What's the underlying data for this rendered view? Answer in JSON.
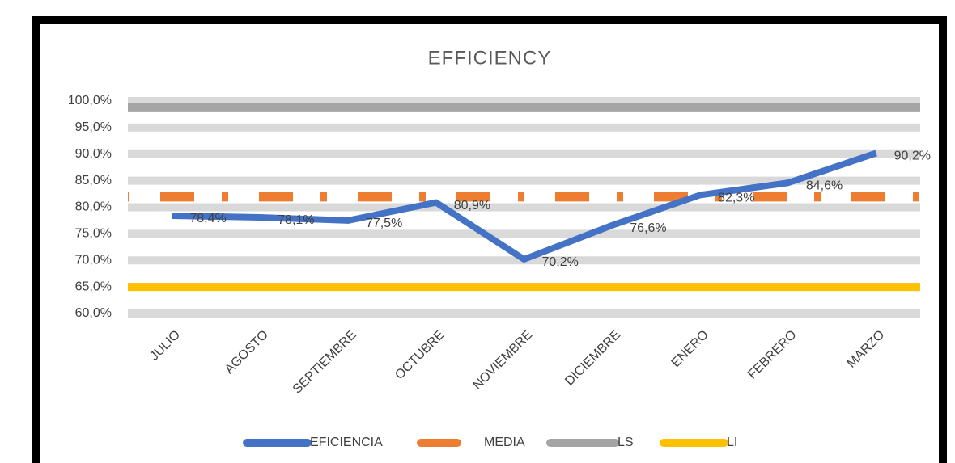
{
  "chart_data": {
    "type": "line",
    "title": "EFFICIENCY",
    "categories": [
      "JULIO",
      "AGOSTO",
      "SEPTIEMBRE",
      "OCTUBRE",
      "NOVIEMBRE",
      "DICIEMBRE",
      "ENERO",
      "FEBRERO",
      "MARZO"
    ],
    "series": [
      {
        "name": "EFICIENCIA",
        "color": "#4472c4",
        "values": [
          78.4,
          78.1,
          77.5,
          80.9,
          70.2,
          76.6,
          82.3,
          84.6,
          90.2
        ],
        "value_labels": [
          "78,4%",
          "78,1%",
          "77,5%",
          "80,9%",
          "70,2%",
          "76,6%",
          "82,3%",
          "84,6%",
          "90,2%"
        ]
      },
      {
        "name": "MEDIA",
        "color": "#ed7d31",
        "values": [
          82,
          82,
          82,
          82,
          82,
          82,
          82,
          82,
          82
        ]
      },
      {
        "name": "LS",
        "color": "#a5a5a5",
        "values": [
          98.8,
          98.8,
          98.8,
          98.8,
          98.8,
          98.8,
          98.8,
          98.8,
          98.8
        ]
      },
      {
        "name": "LI",
        "color": "#ffc000",
        "values": [
          65,
          65,
          65,
          65,
          65,
          65,
          65,
          65,
          65
        ]
      }
    ],
    "ylim": [
      60,
      100
    ],
    "yticks": [
      {
        "value": 60,
        "label": "60,0%"
      },
      {
        "value": 65,
        "label": "65,0%"
      },
      {
        "value": 70,
        "label": "70,0%"
      },
      {
        "value": 75,
        "label": "75,0%"
      },
      {
        "value": 80,
        "label": "80,0%"
      },
      {
        "value": 85,
        "label": "85,0%"
      },
      {
        "value": 90,
        "label": "90,0%"
      },
      {
        "value": 95,
        "label": "95,0%"
      },
      {
        "value": 100,
        "label": "100,0%"
      }
    ],
    "grid": true,
    "legend": "bottom"
  }
}
